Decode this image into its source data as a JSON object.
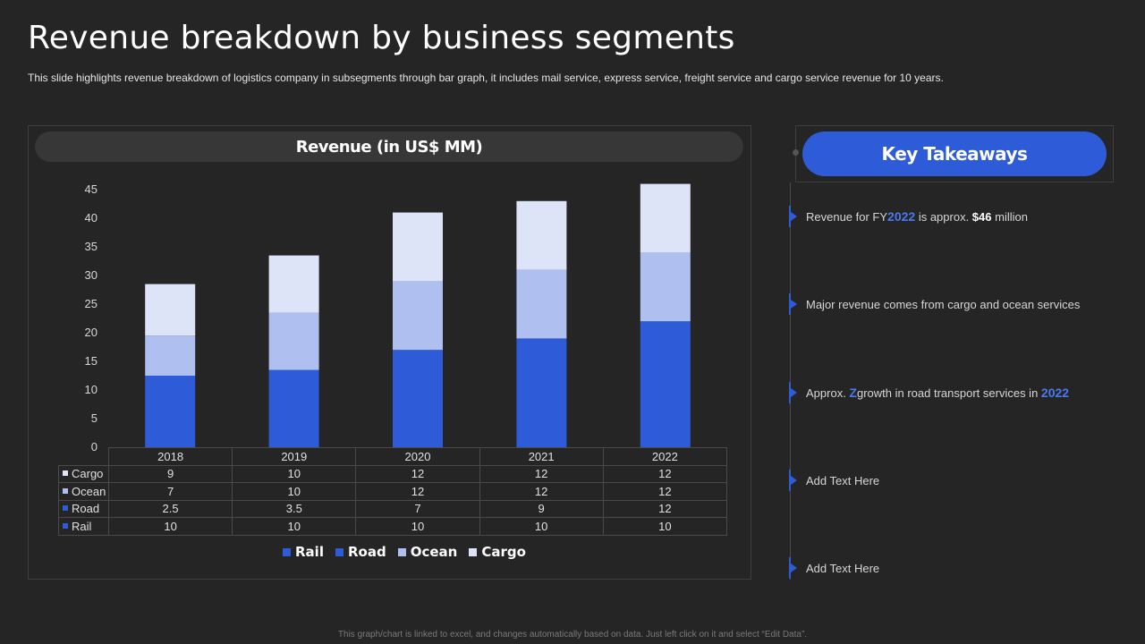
{
  "title": "Revenue breakdown by business segments",
  "subtitle": "This slide highlights revenue breakdown of logistics company in subsegments through bar graph, it includes mail service, express service, freight service and cargo service revenue for 10 years.",
  "chart_header": "Revenue (in US$ MM)",
  "chart_data": {
    "type": "bar",
    "stacked": true,
    "title": "Revenue (in US$ MM)",
    "categories": [
      "2018",
      "2019",
      "2020",
      "2021",
      "2022"
    ],
    "series": [
      {
        "name": "Rail",
        "color": "#2e5bd8",
        "values": [
          10,
          10,
          10,
          10,
          10
        ]
      },
      {
        "name": "Road",
        "color": "#2e5bd8",
        "values": [
          2.5,
          3.5,
          7,
          9,
          12
        ]
      },
      {
        "name": "Ocean",
        "color": "#aebff0",
        "values": [
          7,
          10,
          12,
          12,
          12
        ]
      },
      {
        "name": "Cargo",
        "color": "#dde4f8",
        "values": [
          9,
          10,
          12,
          12,
          12
        ]
      }
    ],
    "ylim": [
      0,
      45
    ],
    "yticks": [
      "0",
      "5",
      "10",
      "15",
      "20",
      "25",
      "30",
      "35",
      "40",
      "45"
    ],
    "legend_position": "bottom",
    "data_table": true
  },
  "table_rows_order": [
    "Cargo",
    "Ocean",
    "Road",
    "Rail"
  ],
  "key_takeaways": {
    "title": "Key Takeaways",
    "items": [
      {
        "pre": "Revenue  for FY",
        "hl1": "2022",
        "mid": " is approx.  ",
        "hl2": "$46",
        "post": "  million"
      },
      {
        "text": "Major revenue  comes from cargo and ocean services"
      },
      {
        "pre": "Approx. ",
        "hl1": "Z",
        "mid": "growth  in road transport services in ",
        "hl2": "2022"
      },
      {
        "text": "Add Text Here"
      },
      {
        "text": "Add Text Here"
      }
    ]
  },
  "footnote": "This graph/chart is linked to excel, and changes automatically based on data. Just left click on it and select “Edit Data”.",
  "colors": {
    "background": "#252525",
    "accent": "#2e5bd8",
    "ocean": "#aebff0",
    "cargo": "#dde4f8"
  }
}
